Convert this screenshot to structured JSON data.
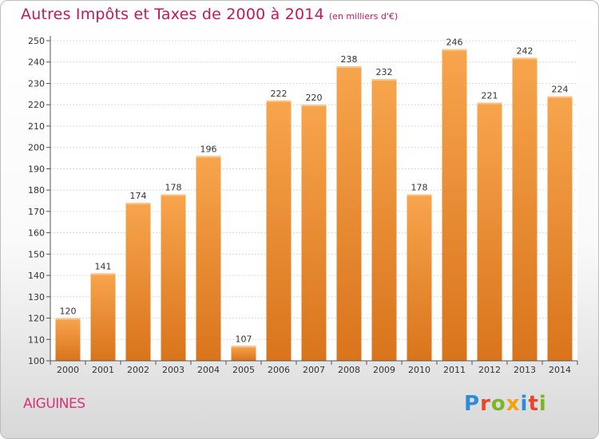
{
  "title": "Autres Impôts et Taxes de 2000 à 2014",
  "subtitle": "(en milliers d'€)",
  "location": "AIGUINES",
  "logo": {
    "text": "Proxiti",
    "letters": [
      {
        "ch": "P",
        "color": "#2e8bd8"
      },
      {
        "ch": "r",
        "color": "#e8462b"
      },
      {
        "ch": "o",
        "color": "#7cb526"
      },
      {
        "ch": "x",
        "color": "#f0a30a"
      },
      {
        "ch": "i",
        "color": "#2e8bd8"
      },
      {
        "ch": "t",
        "color": "#e8462b"
      },
      {
        "ch": "i",
        "color": "#7cb526"
      }
    ]
  },
  "colors": {
    "bar_top": "#f7a54d",
    "bar_bottom": "#d9741c",
    "title": "#c2185b"
  },
  "chart_data": {
    "type": "bar",
    "categories": [
      "2000",
      "2001",
      "2002",
      "2003",
      "2004",
      "2005",
      "2006",
      "2007",
      "2008",
      "2009",
      "2010",
      "2011",
      "2012",
      "2013",
      "2014"
    ],
    "values": [
      120,
      141,
      174,
      178,
      196,
      107,
      222,
      220,
      238,
      232,
      178,
      246,
      221,
      242,
      224
    ],
    "ylim": [
      100,
      250
    ],
    "yticks": [
      100,
      110,
      120,
      130,
      140,
      150,
      160,
      170,
      180,
      190,
      200,
      210,
      220,
      230,
      240,
      250
    ],
    "grid": true,
    "title": "Autres Impôts et Taxes de 2000 à 2014",
    "xlabel": "",
    "ylabel": ""
  }
}
